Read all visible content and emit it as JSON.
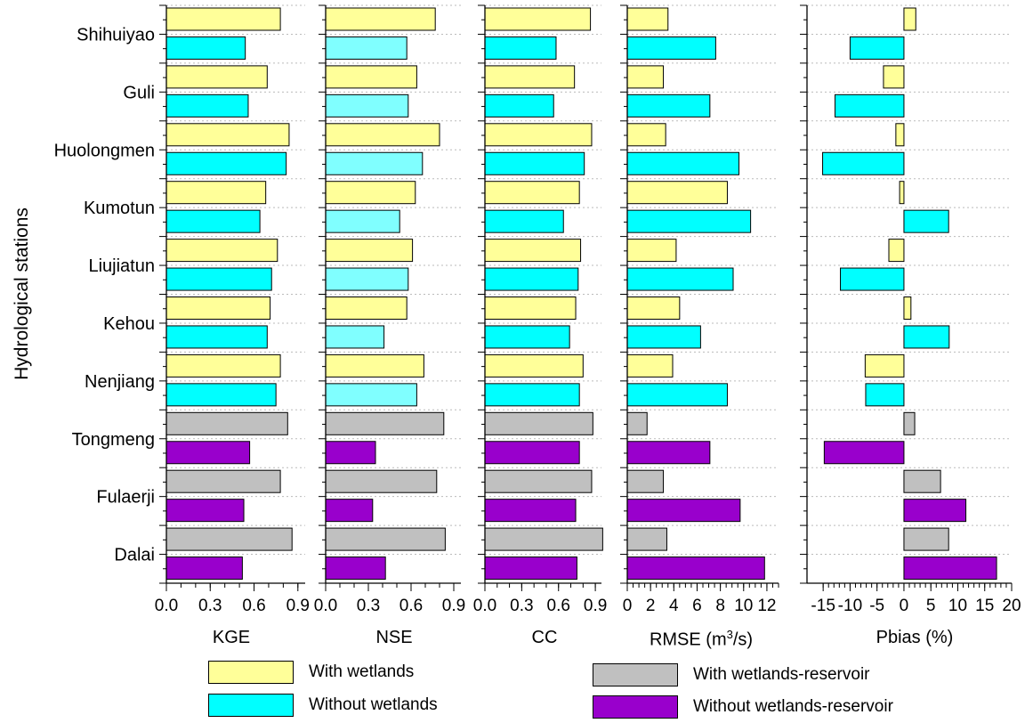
{
  "chart_data": {
    "type": "bar",
    "orientation": "horizontal",
    "ylabel": "Hydrological stations",
    "stations": [
      "Shihuiyao",
      "Guli",
      "Huolongmen",
      "Kumotun",
      "Liujiatun",
      "Kehou",
      "Nenjiang",
      "Tongmeng",
      "Fulaerji",
      "Dalai"
    ],
    "series": [
      {
        "name": "With wetlands",
        "color": "#ffff99"
      },
      {
        "name": "Without wetlands",
        "color": "#00ffff"
      },
      {
        "name": "With wetlands-reservoir",
        "color": "#c0c0c0"
      },
      {
        "name": "Without wetlands-reservoir",
        "color": "#9900cc"
      }
    ],
    "panels": [
      {
        "xlabel": "KGE",
        "xlim": [
          0,
          0.95
        ],
        "ticks": [
          "0.0",
          "0.3",
          "0.6",
          "0.9"
        ],
        "tick_values": [
          0,
          0.3,
          0.6,
          0.9
        ],
        "with": [
          0.78,
          0.69,
          0.84,
          0.68,
          0.76,
          0.71,
          0.78,
          0.83,
          0.78,
          0.86
        ],
        "without": [
          0.54,
          0.56,
          0.82,
          0.64,
          0.72,
          0.69,
          0.75,
          0.57,
          0.53,
          0.52
        ]
      },
      {
        "xlabel": "NSE",
        "xlim": [
          0,
          0.95
        ],
        "ticks": [
          "0.0",
          "0.3",
          "0.6",
          "0.9"
        ],
        "tick_values": [
          0,
          0.3,
          0.6,
          0.9
        ],
        "with": [
          0.77,
          0.64,
          0.8,
          0.63,
          0.61,
          0.57,
          0.69,
          0.83,
          0.78,
          0.84
        ],
        "without": [
          0.57,
          0.58,
          0.68,
          0.52,
          0.58,
          0.41,
          0.64,
          0.35,
          0.33,
          0.42
        ]
      },
      {
        "xlabel": "CC",
        "xlim": [
          0,
          0.95
        ],
        "ticks": [
          "0.0",
          "0.3",
          "0.6",
          "0.9"
        ],
        "tick_values": [
          0,
          0.3,
          0.6,
          0.9
        ],
        "with": [
          0.86,
          0.73,
          0.87,
          0.77,
          0.78,
          0.74,
          0.8,
          0.88,
          0.87,
          0.96
        ],
        "without": [
          0.58,
          0.56,
          0.81,
          0.64,
          0.76,
          0.69,
          0.77,
          0.77,
          0.74,
          0.75
        ]
      },
      {
        "xlabel": "RMSE (m³/s)",
        "xlim": [
          0,
          13
        ],
        "ticks": [
          "0",
          "2",
          "4",
          "6",
          "8",
          "10",
          "12"
        ],
        "tick_values": [
          0,
          2,
          4,
          6,
          8,
          10,
          12
        ],
        "with": [
          3.5,
          3.1,
          3.3,
          8.6,
          4.2,
          4.5,
          3.9,
          1.7,
          3.1,
          3.4
        ],
        "without": [
          7.6,
          7.1,
          9.6,
          10.6,
          9.1,
          6.3,
          8.6,
          7.1,
          9.7,
          11.8
        ]
      },
      {
        "xlabel": "Pbias (%)",
        "xlim": [
          -18,
          20
        ],
        "ticks": [
          "-15",
          "-10",
          "-5",
          "0",
          "5",
          "10",
          "15",
          "20"
        ],
        "tick_values": [
          -15,
          -10,
          -5,
          0,
          5,
          10,
          15,
          20
        ],
        "with": [
          2.2,
          -3.8,
          -1.5,
          -0.8,
          -2.8,
          1.3,
          -7.2,
          2.0,
          6.8,
          8.3
        ],
        "without": [
          -10,
          -12.8,
          -15.1,
          8.3,
          -11.8,
          8.4,
          -7.1,
          -14.8,
          11.5,
          17.2
        ]
      }
    ]
  },
  "legend": {
    "with_wetlands": "With wetlands",
    "without_wetlands": "Without wetlands",
    "with_reservoir": "With wetlands-reservoir",
    "without_reservoir": "Without wetlands-reservoir"
  },
  "labels": {
    "kge": "KGE",
    "nse": "NSE",
    "cc": "CC",
    "rmse_prefix": "RMSE (m",
    "rmse_sup": "3",
    "rmse_suffix": "/s)",
    "pbias": "Pbias (%)"
  }
}
